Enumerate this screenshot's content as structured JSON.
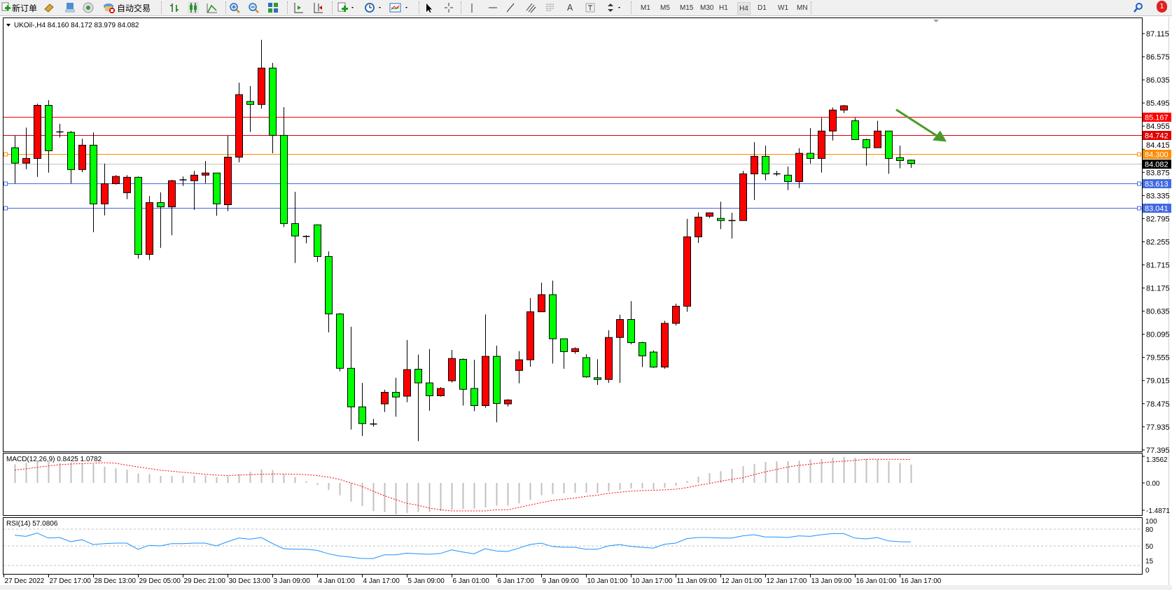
{
  "toolbar": {
    "new_order": "新订单",
    "auto_trading": "自动交易",
    "timeframes": [
      "M1",
      "M5",
      "M15",
      "M30",
      "H1",
      "H4",
      "D1",
      "W1",
      "MN"
    ],
    "active_timeframe": "H4",
    "notification_count": "1",
    "icons": [
      "new-order-icon",
      "market-watch-icon",
      "data-window-icon",
      "signals-icon",
      "auto-trading-icon",
      "bar-chart-icon",
      "candlestick-icon",
      "line-chart-icon",
      "zoom-in-icon",
      "zoom-out-icon",
      "tile-windows-icon",
      "auto-scroll-icon",
      "chart-shift-icon",
      "indicators-icon",
      "periods-icon",
      "templates-icon",
      "cursor-icon",
      "crosshair-icon",
      "vertical-line-icon",
      "horizontal-line-icon",
      "trendline-icon",
      "equidistant-channel-icon",
      "fibonacci-icon",
      "text-icon",
      "text-label-icon",
      "arrows-icon",
      "search-icon",
      "notification-icon"
    ]
  },
  "colors": {
    "bull": "#ff0000",
    "bear": "#00ff00",
    "macd_hist": "#c0c0c0",
    "macd_signal": "#ff0000",
    "rsi": "#1e90ff",
    "arrow": "#4a9a2a"
  },
  "chart_data": {
    "type": "candlestick",
    "title": "UKOil-,H4  84.160 84.172 83.979 84.082",
    "symbol": "UKOil-",
    "timeframe": "H4",
    "last_ohlc": {
      "open": 84.16,
      "high": 84.172,
      "low": 83.979,
      "close": 84.082
    },
    "ylim": [
      77.395,
      87.115
    ],
    "price_ticks": [
      "87.115",
      "86.575",
      "86.035",
      "85.495",
      "84.955",
      "84.415",
      "83.875",
      "83.335",
      "82.795",
      "82.255",
      "81.715",
      "81.175",
      "80.635",
      "80.095",
      "79.555",
      "79.015",
      "78.475",
      "77.935",
      "77.395"
    ],
    "levels": [
      {
        "price": "85.167",
        "color": "#ff0000",
        "label_text": "#ffffff"
      },
      {
        "price": "84.742",
        "color": "#e00000",
        "label_text": "#ffffff"
      },
      {
        "price": "84.300",
        "color": "#ff8c00",
        "label_text": "#ffffff"
      },
      {
        "price": "84.082",
        "color": "#c0c0c0",
        "label_bg": "#000000",
        "label_text": "#ffffff"
      },
      {
        "price": "83.613",
        "color": "#4169e1",
        "label_text": "#ffffff"
      },
      {
        "price": "83.041",
        "color": "#4169e1",
        "label_text": "#ffffff"
      }
    ],
    "trend_arrow": {
      "direction": "down",
      "from_price": 85.34,
      "to_price": 84.59
    },
    "time_labels": [
      "27 Dec 2022",
      "27 Dec 17:00",
      "28 Dec 13:00",
      "29 Dec 05:00",
      "29 Dec 21:00",
      "30 Dec 13:00",
      "3 Jan 09:00",
      "4 Jan 01:00",
      "4 Jan 17:00",
      "5 Jan 09:00",
      "6 Jan 01:00",
      "6 Jan 17:00",
      "9 Jan 09:00",
      "10 Jan 01:00",
      "10 Jan 17:00",
      "11 Jan 09:00",
      "12 Jan 01:00",
      "12 Jan 17:00",
      "13 Jan 09:00",
      "16 Jan 01:00",
      "16 Jan 17:00"
    ],
    "ohlc": [
      [
        84.45,
        84.73,
        83.62,
        84.09
      ],
      [
        84.09,
        84.92,
        83.95,
        84.2
      ],
      [
        84.2,
        85.48,
        83.77,
        85.44
      ],
      [
        85.44,
        85.56,
        83.87,
        84.38
      ],
      [
        84.82,
        85.01,
        84.69,
        84.82
      ],
      [
        84.81,
        84.84,
        83.62,
        83.94
      ],
      [
        83.94,
        84.66,
        83.88,
        84.51
      ],
      [
        84.51,
        84.81,
        82.48,
        83.14
      ],
      [
        83.14,
        84.08,
        82.87,
        83.61
      ],
      [
        83.61,
        83.81,
        83.59,
        83.78
      ],
      [
        83.4,
        83.81,
        83.25,
        83.76
      ],
      [
        83.76,
        83.78,
        81.86,
        81.96
      ],
      [
        81.96,
        83.32,
        81.83,
        83.17
      ],
      [
        83.17,
        83.41,
        82.11,
        83.07
      ],
      [
        83.07,
        83.7,
        82.41,
        83.68
      ],
      [
        83.7,
        83.78,
        83.56,
        83.7
      ],
      [
        83.68,
        83.91,
        83.0,
        83.81
      ],
      [
        83.81,
        84.14,
        83.62,
        83.86
      ],
      [
        83.86,
        83.86,
        82.86,
        83.14
      ],
      [
        83.12,
        84.73,
        82.97,
        84.23
      ],
      [
        84.23,
        85.97,
        84.11,
        85.69
      ],
      [
        85.53,
        85.89,
        84.82,
        85.46
      ],
      [
        85.46,
        86.97,
        85.36,
        86.31
      ],
      [
        86.31,
        86.43,
        84.32,
        84.74
      ],
      [
        84.74,
        85.4,
        82.6,
        82.68
      ],
      [
        82.68,
        83.42,
        81.76,
        82.39
      ],
      [
        82.38,
        82.41,
        82.22,
        82.38
      ],
      [
        82.65,
        82.66,
        81.78,
        81.91
      ],
      [
        81.91,
        82.03,
        80.14,
        80.57
      ],
      [
        80.57,
        80.59,
        79.23,
        79.3
      ],
      [
        79.3,
        80.27,
        77.87,
        78.4
      ],
      [
        78.4,
        78.96,
        77.72,
        78.01
      ],
      [
        78.0,
        78.12,
        77.94,
        78.0
      ],
      [
        78.47,
        78.8,
        78.28,
        78.74
      ],
      [
        78.74,
        79.08,
        78.17,
        78.63
      ],
      [
        78.65,
        79.96,
        78.51,
        79.27
      ],
      [
        79.28,
        79.62,
        77.6,
        78.96
      ],
      [
        78.96,
        79.75,
        78.31,
        78.66
      ],
      [
        78.66,
        78.86,
        78.64,
        78.83
      ],
      [
        79.01,
        79.73,
        78.97,
        79.53
      ],
      [
        79.51,
        79.53,
        78.43,
        78.81
      ],
      [
        78.83,
        79.5,
        78.3,
        78.43
      ],
      [
        78.43,
        80.56,
        78.38,
        79.58
      ],
      [
        79.58,
        79.83,
        78.04,
        78.48
      ],
      [
        78.47,
        78.58,
        78.41,
        78.56
      ],
      [
        79.25,
        79.7,
        78.95,
        79.5
      ],
      [
        79.5,
        80.94,
        79.34,
        80.62
      ],
      [
        80.62,
        81.3,
        80.62,
        81.02
      ],
      [
        81.02,
        81.35,
        79.41,
        79.99
      ],
      [
        79.99,
        79.99,
        79.29,
        79.69
      ],
      [
        79.69,
        79.79,
        79.64,
        79.76
      ],
      [
        79.55,
        79.63,
        79.08,
        79.1
      ],
      [
        79.08,
        79.51,
        78.91,
        79.04
      ],
      [
        79.04,
        80.19,
        78.96,
        80.02
      ],
      [
        80.02,
        80.55,
        78.96,
        80.44
      ],
      [
        80.44,
        80.87,
        79.86,
        79.9
      ],
      [
        79.9,
        79.92,
        79.33,
        79.59
      ],
      [
        79.68,
        79.72,
        79.31,
        79.33
      ],
      [
        79.33,
        80.41,
        79.29,
        80.35
      ],
      [
        80.35,
        80.81,
        80.3,
        80.75
      ],
      [
        80.75,
        82.79,
        80.62,
        82.37
      ],
      [
        82.37,
        82.94,
        82.23,
        82.83
      ],
      [
        82.85,
        82.94,
        82.81,
        82.93
      ],
      [
        82.8,
        83.19,
        82.55,
        82.75
      ],
      [
        82.75,
        82.93,
        82.33,
        82.75
      ],
      [
        82.75,
        83.91,
        82.75,
        83.84
      ],
      [
        83.84,
        84.58,
        83.23,
        84.25
      ],
      [
        84.25,
        84.5,
        83.69,
        83.84
      ],
      [
        83.84,
        83.91,
        83.79,
        83.84
      ],
      [
        83.81,
        84.01,
        83.46,
        83.66
      ],
      [
        83.66,
        84.44,
        83.51,
        84.32
      ],
      [
        84.32,
        84.91,
        84.08,
        84.2
      ],
      [
        84.2,
        85.15,
        83.87,
        84.84
      ],
      [
        84.84,
        85.39,
        84.62,
        85.33
      ],
      [
        85.33,
        85.45,
        85.26,
        85.43
      ],
      [
        85.08,
        85.15,
        84.63,
        84.64
      ],
      [
        84.64,
        84.66,
        84.03,
        84.45
      ],
      [
        84.45,
        85.08,
        84.45,
        84.84
      ],
      [
        84.84,
        84.84,
        83.84,
        84.2
      ],
      [
        84.22,
        84.5,
        83.97,
        84.15
      ],
      [
        84.16,
        84.172,
        83.979,
        84.082
      ]
    ],
    "macd": {
      "label": "MACD(12,26,9) 0.8425 1.0782",
      "ylim": [
        -1.4871,
        1.3562
      ],
      "axis_labels": [
        "1.3562",
        "0.00",
        "-1.4871"
      ],
      "histogram": [
        0.86,
        0.92,
        0.97,
        0.97,
        0.92,
        0.94,
        0.92,
        0.86,
        0.75,
        0.67,
        0.61,
        0.43,
        0.4,
        0.32,
        0.32,
        0.32,
        0.32,
        0.34,
        0.27,
        0.31,
        0.41,
        0.52,
        0.62,
        0.59,
        0.4,
        0.27,
        0.08,
        -0.09,
        -0.32,
        -0.57,
        -0.86,
        -1.07,
        -1.3,
        -1.34,
        -1.45,
        -1.38,
        -1.34,
        -1.34,
        -1.29,
        -1.24,
        -1.2,
        -1.18,
        -1.13,
        -1.05,
        -1.05,
        -0.94,
        -0.77,
        -0.57,
        -0.51,
        -0.48,
        -0.45,
        -0.45,
        -0.48,
        -0.38,
        -0.32,
        -0.25,
        -0.25,
        -0.3,
        -0.22,
        -0.13,
        0.09,
        0.29,
        0.45,
        0.54,
        0.65,
        0.77,
        0.88,
        0.97,
        0.99,
        1.0,
        1.02,
        1.08,
        1.11,
        1.16,
        1.2,
        1.16,
        1.1,
        1.08,
        1.0,
        0.92,
        0.8425
      ],
      "signal": [
        0.59,
        0.65,
        0.72,
        0.78,
        0.84,
        0.87,
        0.89,
        0.91,
        0.93,
        0.91,
        0.82,
        0.74,
        0.66,
        0.59,
        0.54,
        0.49,
        0.45,
        0.4,
        0.36,
        0.34,
        0.36,
        0.38,
        0.4,
        0.41,
        0.41,
        0.4,
        0.38,
        0.34,
        0.27,
        0.16,
        0.0,
        -0.16,
        -0.38,
        -0.59,
        -0.77,
        -0.94,
        -1.03,
        -1.16,
        -1.24,
        -1.29,
        -1.29,
        -1.29,
        -1.29,
        -1.24,
        -1.24,
        -1.13,
        -1.02,
        -0.91,
        -0.81,
        -0.75,
        -0.7,
        -0.62,
        -0.57,
        -0.48,
        -0.43,
        -0.38,
        -0.35,
        -0.34,
        -0.32,
        -0.29,
        -0.22,
        -0.11,
        -0.03,
        0.08,
        0.16,
        0.24,
        0.38,
        0.51,
        0.62,
        0.73,
        0.81,
        0.86,
        0.92,
        0.97,
        1.0,
        1.04,
        1.09,
        1.09,
        1.09,
        1.09,
        1.0782
      ]
    },
    "rsi": {
      "label": "RSI(14) 57.0806",
      "ylim": [
        0,
        100
      ],
      "levels": [
        80,
        50,
        15
      ],
      "axis_labels": [
        "100",
        "80",
        "50",
        "15",
        "0"
      ],
      "values": [
        69,
        67,
        73,
        64,
        65,
        57.5,
        61,
        52.5,
        54,
        55,
        55,
        44,
        51,
        50,
        54,
        54,
        55,
        55,
        50,
        57.5,
        64,
        62,
        65,
        54.5,
        45,
        44,
        44,
        42,
        36,
        32,
        30,
        27.5,
        27.5,
        34,
        34,
        37,
        36,
        35,
        36.5,
        43,
        39,
        36,
        45,
        41,
        40,
        46,
        52.5,
        55,
        49,
        47.5,
        47.5,
        44,
        44,
        50,
        52.5,
        49,
        47.5,
        46,
        53,
        55,
        63,
        65,
        65,
        64,
        64,
        68,
        70,
        66,
        66,
        65,
        68,
        67,
        70,
        72,
        72,
        64,
        62.5,
        65,
        59,
        57.5,
        57.0806
      ]
    }
  }
}
